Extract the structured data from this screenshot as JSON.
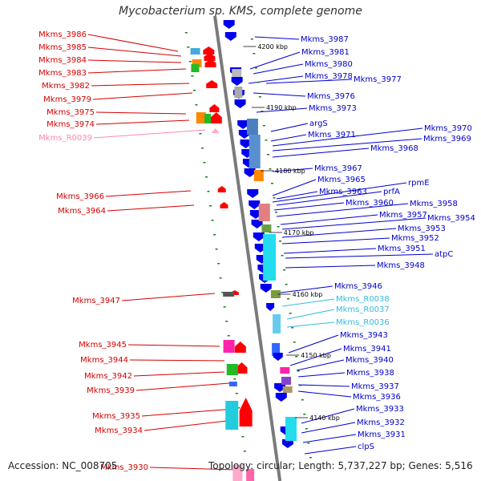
{
  "title": "Mycobacterium sp. KMS, complete genome",
  "footer": {
    "accession": "Accession: NC_008705",
    "topology": "Topology: circular; Length: 5,737,227 bp; Genes: 5,516"
  },
  "colors": {
    "backbone": "#7a7a7a",
    "left_label": "#d40000",
    "left_label_rna": "#ff88aa",
    "right_label": "#0000cc",
    "right_label_rna": "#33bbdd",
    "forward_gene": "#ff0000",
    "reverse_gene": "#0000ee",
    "tick": "#1a7a1a"
  },
  "kbp_markers": [
    "4200 kbp",
    "4190 kbp",
    "4180 kbp",
    "4170 kbp",
    "4160 kbp",
    "4150 kbp",
    "4140 kbp"
  ],
  "left_labels": [
    "Mkms_3986",
    "Mkms_3985",
    "Mkms_3984",
    "Mkms_3983",
    "Mkms_3982",
    "Mkms_3979",
    "Mkms_3975",
    "Mkms_3974",
    "Mkms_R0039",
    "Mkms_3966",
    "Mkms_3964",
    "Mkms_3947",
    "Mkms_3945",
    "Mkms_3944",
    "Mkms_3942",
    "Mkms_3939",
    "Mkms_3935",
    "Mkms_3934",
    "Mkms_3930"
  ],
  "right_labels": [
    "Mkms_3987",
    "Mkms_3981",
    "Mkms_3980",
    "Mkms_3978",
    "Mkms_3977",
    "Mkms_3976",
    "Mkms_3973",
    "argS",
    "Mkms_3971",
    "Mkms_3970",
    "Mkms_3969",
    "Mkms_3968",
    "Mkms_3967",
    "Mkms_3965",
    "rpmE",
    "Mkms_3963",
    "prfA",
    "Mkms_3960",
    "Mkms_3958",
    "Mkms_3957",
    "Mkms_3954",
    "Mkms_3953",
    "Mkms_3952",
    "Mkms_3951",
    "atpC",
    "Mkms_3948",
    "Mkms_3946",
    "Mkms_R0038",
    "Mkms_R0037",
    "Mkms_R0036",
    "Mkms_3943",
    "Mkms_3941",
    "Mkms_3940",
    "Mkms_3938",
    "Mkms_3937",
    "Mkms_3936",
    "Mkms_3933",
    "Mkms_3932",
    "Mkms_3931",
    "clpS"
  ]
}
